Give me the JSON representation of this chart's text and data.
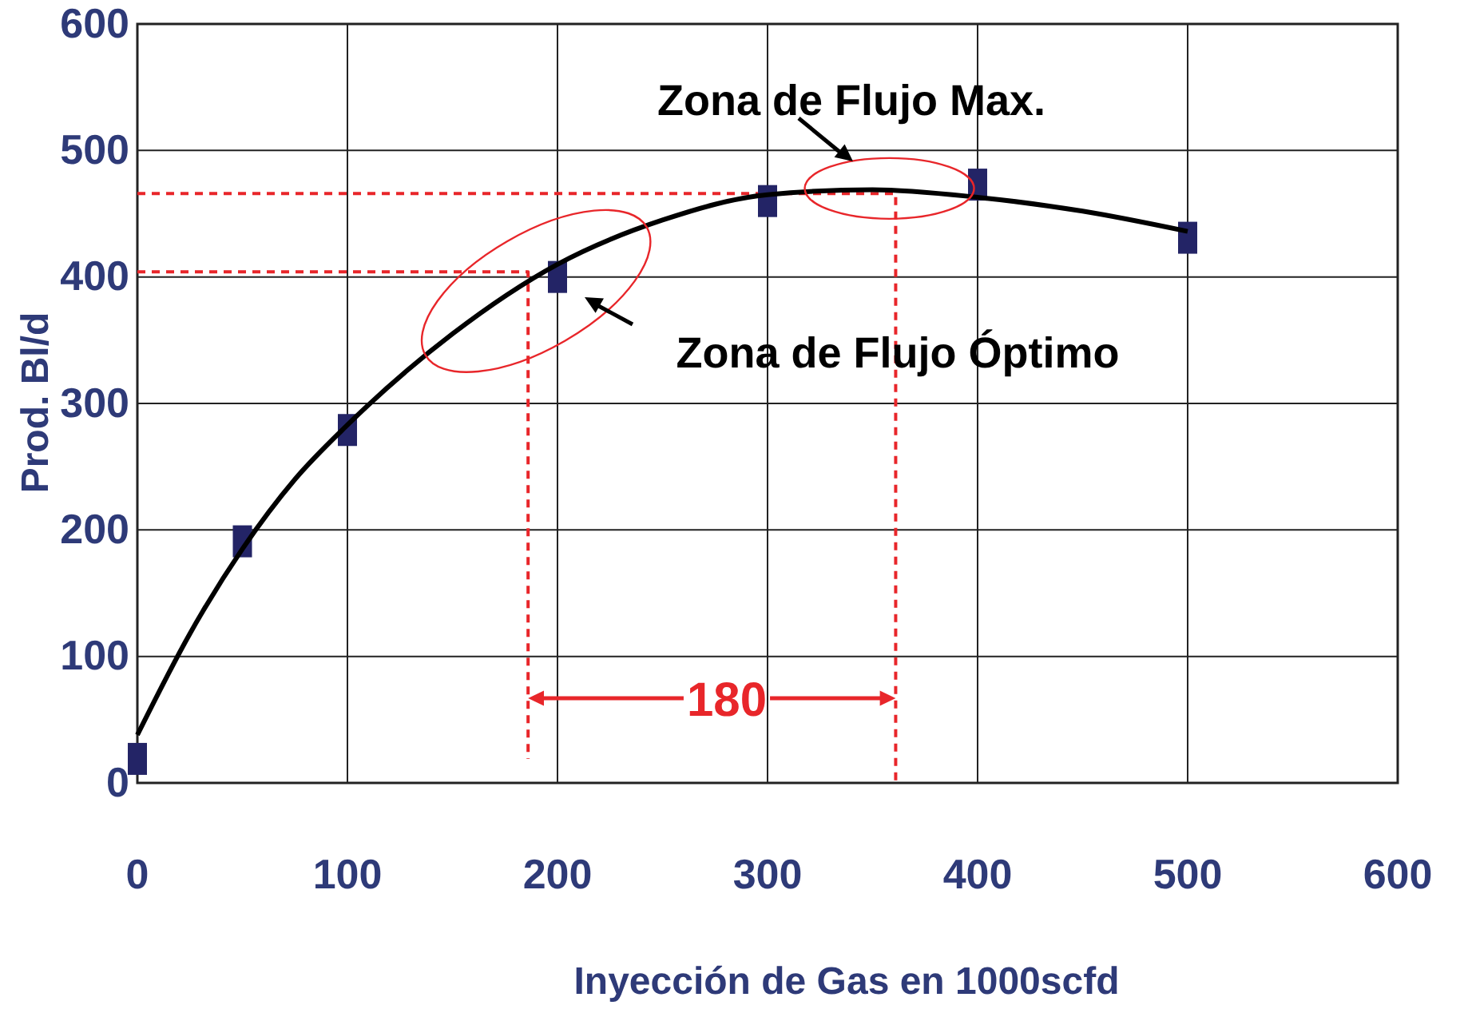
{
  "chart_data": {
    "type": "scatter",
    "xlabel": "Inyección de Gas en 1000scfd",
    "ylabel": "Prod. Bl/d",
    "xlim": [
      0,
      600
    ],
    "xticks": [
      0,
      100,
      200,
      300,
      400,
      500,
      600
    ],
    "ylim": [
      0,
      600
    ],
    "yticks": [
      0,
      100,
      200,
      300,
      400,
      500,
      600
    ],
    "grid": true,
    "series": [
      {
        "type": "line",
        "color": "#e8262a",
        "line_style": "dashed",
        "x": [
          0,
          361,
          361
        ],
        "values": [
          466,
          466,
          0
        ]
      },
      {
        "type": "line",
        "color": "#e8262a",
        "line_style": "dashed",
        "x": [
          0,
          186,
          186
        ],
        "values": [
          404,
          404,
          19
        ]
      },
      {
        "color": "#232466",
        "marker": "square",
        "x": [
          0,
          50,
          100,
          200,
          300,
          400,
          500
        ],
        "values": [
          19,
          191,
          279,
          400,
          460,
          473,
          431
        ]
      },
      {
        "type": "line",
        "color": "#000000",
        "x": [
          0,
          25,
          50,
          75,
          100,
          150,
          200,
          250,
          300,
          350,
          400,
          450,
          500
        ],
        "values": [
          38,
          118,
          185,
          240,
          283,
          355,
          410,
          445,
          465,
          469,
          463,
          452,
          436
        ]
      }
    ],
    "annotations": [
      {
        "text": "Zona de Flujo Max.",
        "x": 358,
        "y": 470
      },
      "Zona de Flujo Óptimo",
      "180"
    ]
  }
}
